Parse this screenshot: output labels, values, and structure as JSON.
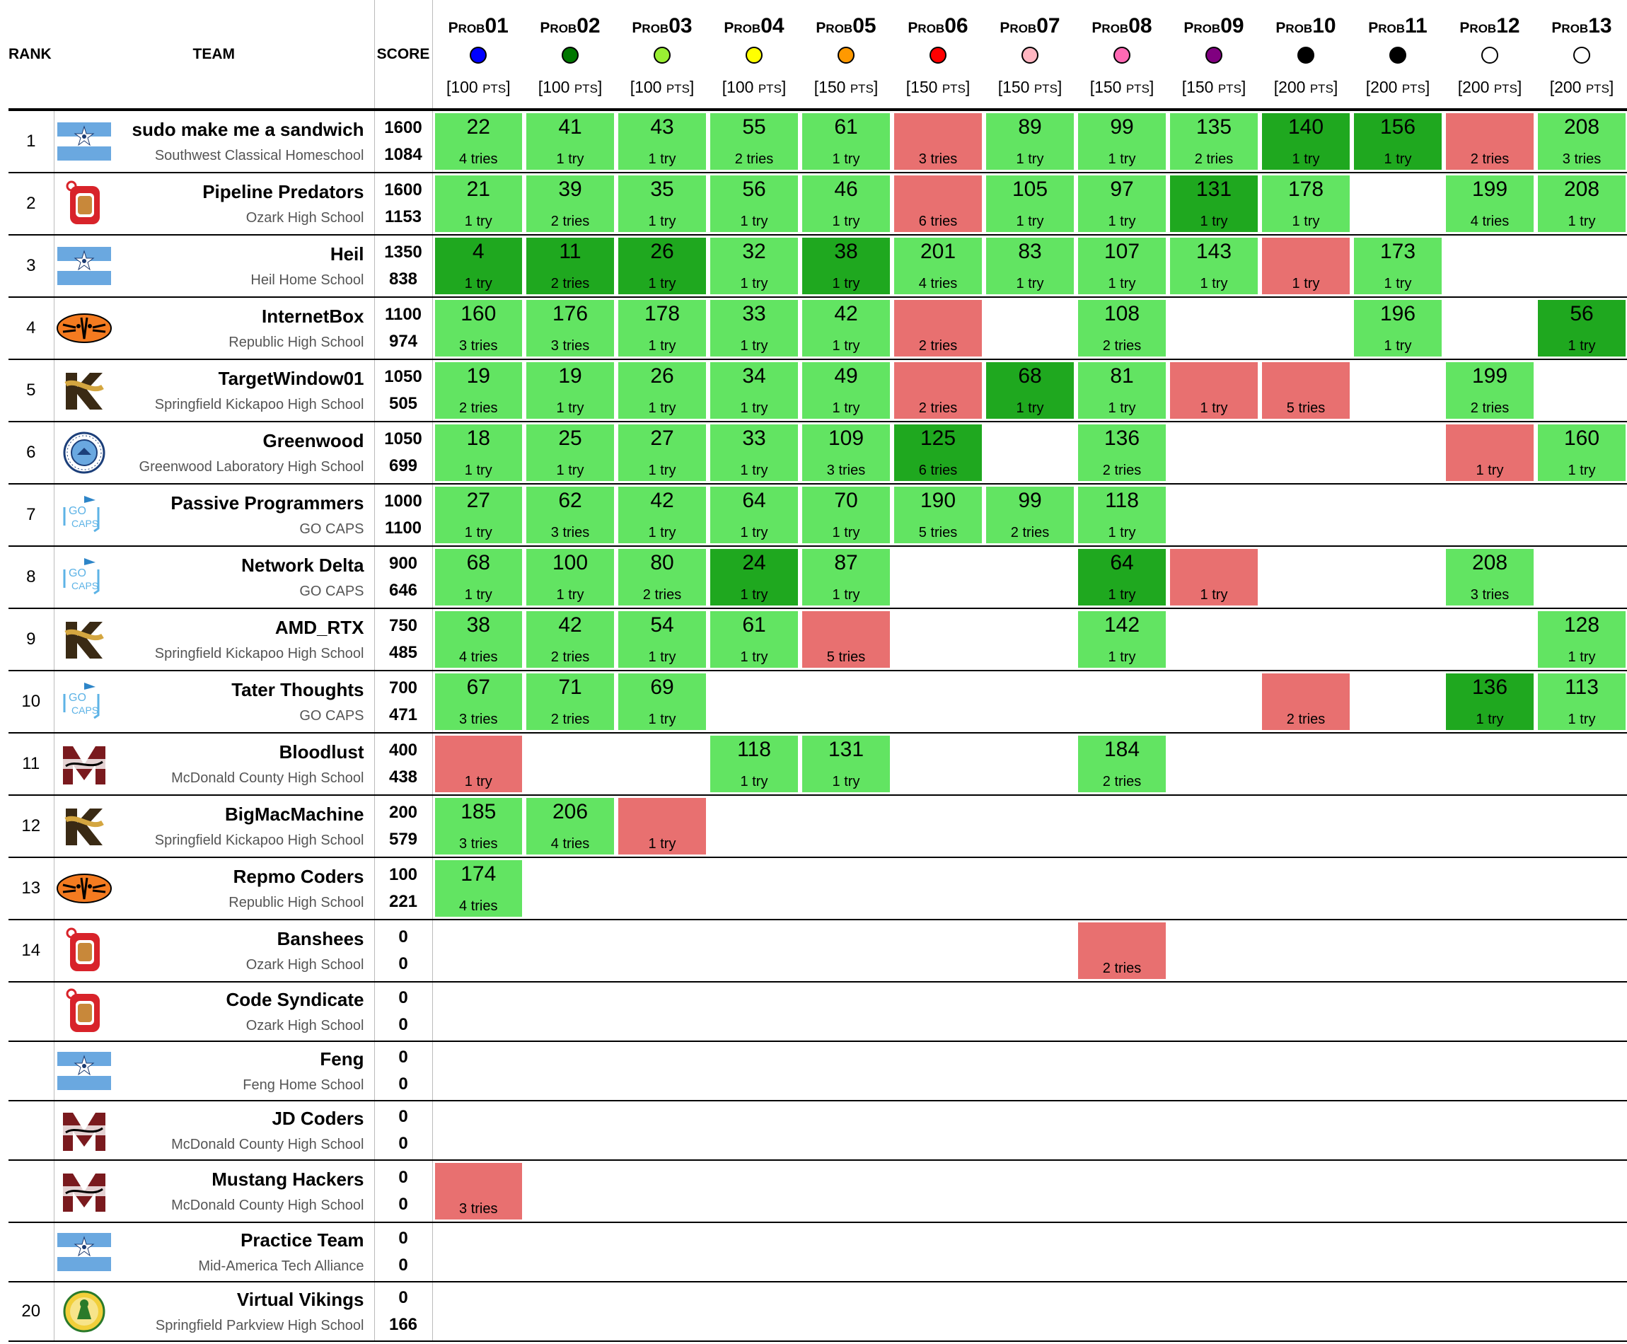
{
  "headers": {
    "rank": "RANK",
    "team": "TEAM",
    "score": "SCORE",
    "prob_prefix_big": "P",
    "prob_prefix_small": "ROB",
    "pts_suffix": "PTS"
  },
  "problems": [
    {
      "num": "01",
      "color": "#0000ff",
      "points": "100"
    },
    {
      "num": "02",
      "color": "#007700",
      "points": "100"
    },
    {
      "num": "03",
      "color": "#99ee33",
      "points": "100"
    },
    {
      "num": "04",
      "color": "#ffff00",
      "points": "100"
    },
    {
      "num": "05",
      "color": "#ff9900",
      "points": "150"
    },
    {
      "num": "06",
      "color": "#ff0000",
      "points": "150"
    },
    {
      "num": "07",
      "color": "#ffb6c1",
      "points": "150"
    },
    {
      "num": "08",
      "color": "#ff69b4",
      "points": "150"
    },
    {
      "num": "09",
      "color": "#800080",
      "points": "150"
    },
    {
      "num": "10",
      "color": "#000000",
      "points": "200"
    },
    {
      "num": "11",
      "color": "#000000",
      "points": "200"
    },
    {
      "num": "12",
      "color": "#ffffff",
      "points": "200"
    },
    {
      "num": "13",
      "color": "#ffffff",
      "points": "200"
    }
  ],
  "logo_types": [
    "flag",
    "ozark",
    "tiger",
    "kickapoo",
    "greenwood",
    "gocaps",
    "mustang",
    "viking"
  ],
  "rows": [
    {
      "rank": "1",
      "logo": "flag",
      "team": "sudo make me a sandwich",
      "school": "Southwest Classical Homeschool",
      "score": "1600",
      "penalty": "1084",
      "cells": [
        [
          "s",
          "22",
          "4 tries"
        ],
        [
          "s",
          "41",
          "1 try"
        ],
        [
          "s",
          "43",
          "1 try"
        ],
        [
          "s",
          "55",
          "2 tries"
        ],
        [
          "s",
          "61",
          "1 try"
        ],
        [
          "f",
          "",
          "3 tries"
        ],
        [
          "s",
          "89",
          "1 try"
        ],
        [
          "s",
          "99",
          "1 try"
        ],
        [
          "s",
          "135",
          "2 tries"
        ],
        [
          "F",
          "140",
          "1 try"
        ],
        [
          "F",
          "156",
          "1 try"
        ],
        [
          "f",
          "",
          "2 tries"
        ],
        [
          "s",
          "208",
          "3 tries"
        ]
      ]
    },
    {
      "rank": "2",
      "logo": "ozark",
      "team": "Pipeline Predators",
      "school": "Ozark High School",
      "score": "1600",
      "penalty": "1153",
      "cells": [
        [
          "s",
          "21",
          "1 try"
        ],
        [
          "s",
          "39",
          "2 tries"
        ],
        [
          "s",
          "35",
          "1 try"
        ],
        [
          "s",
          "56",
          "1 try"
        ],
        [
          "s",
          "46",
          "1 try"
        ],
        [
          "f",
          "",
          "6 tries"
        ],
        [
          "s",
          "105",
          "1 try"
        ],
        [
          "s",
          "97",
          "1 try"
        ],
        [
          "F",
          "131",
          "1 try"
        ],
        [
          "s",
          "178",
          "1 try"
        ],
        [
          "",
          "",
          ""
        ],
        [
          "s",
          "199",
          "4 tries"
        ],
        [
          "s",
          "208",
          "1 try"
        ]
      ]
    },
    {
      "rank": "3",
      "logo": "flag",
      "team": "Heil",
      "school": "Heil Home School",
      "score": "1350",
      "penalty": "838",
      "cells": [
        [
          "F",
          "4",
          "1 try"
        ],
        [
          "F",
          "11",
          "2 tries"
        ],
        [
          "F",
          "26",
          "1 try"
        ],
        [
          "s",
          "32",
          "1 try"
        ],
        [
          "F",
          "38",
          "1 try"
        ],
        [
          "s",
          "201",
          "4 tries"
        ],
        [
          "s",
          "83",
          "1 try"
        ],
        [
          "s",
          "107",
          "1 try"
        ],
        [
          "s",
          "143",
          "1 try"
        ],
        [
          "f",
          "",
          "1 try"
        ],
        [
          "s",
          "173",
          "1 try"
        ],
        [
          "",
          "",
          ""
        ],
        [
          "",
          "",
          ""
        ]
      ]
    },
    {
      "rank": "4",
      "logo": "tiger",
      "team": "InternetBox",
      "school": "Republic High School",
      "score": "1100",
      "penalty": "974",
      "cells": [
        [
          "s",
          "160",
          "3 tries"
        ],
        [
          "s",
          "176",
          "3 tries"
        ],
        [
          "s",
          "178",
          "1 try"
        ],
        [
          "s",
          "33",
          "1 try"
        ],
        [
          "s",
          "42",
          "1 try"
        ],
        [
          "f",
          "",
          "2 tries"
        ],
        [
          "",
          "",
          ""
        ],
        [
          "s",
          "108",
          "2 tries"
        ],
        [
          "",
          "",
          ""
        ],
        [
          "",
          "",
          ""
        ],
        [
          "s",
          "196",
          "1 try"
        ],
        [
          "",
          "",
          ""
        ],
        [
          "F",
          "56",
          "1 try"
        ]
      ]
    },
    {
      "rank": "5",
      "logo": "kickapoo",
      "team": "TargetWindow01",
      "school": "Springfield Kickapoo High School",
      "score": "1050",
      "penalty": "505",
      "cells": [
        [
          "s",
          "19",
          "2 tries"
        ],
        [
          "s",
          "19",
          "1 try"
        ],
        [
          "s",
          "26",
          "1 try"
        ],
        [
          "s",
          "34",
          "1 try"
        ],
        [
          "s",
          "49",
          "1 try"
        ],
        [
          "f",
          "",
          "2 tries"
        ],
        [
          "F",
          "68",
          "1 try"
        ],
        [
          "s",
          "81",
          "1 try"
        ],
        [
          "f",
          "",
          "1 try"
        ],
        [
          "f",
          "",
          "5 tries"
        ],
        [
          "",
          "",
          ""
        ],
        [
          "s",
          "199",
          "2 tries"
        ],
        [
          "",
          "",
          ""
        ]
      ]
    },
    {
      "rank": "6",
      "logo": "greenwood",
      "team": "Greenwood",
      "school": "Greenwood Laboratory High School",
      "score": "1050",
      "penalty": "699",
      "cells": [
        [
          "s",
          "18",
          "1 try"
        ],
        [
          "s",
          "25",
          "1 try"
        ],
        [
          "s",
          "27",
          "1 try"
        ],
        [
          "s",
          "33",
          "1 try"
        ],
        [
          "s",
          "109",
          "3 tries"
        ],
        [
          "F",
          "125",
          "6 tries"
        ],
        [
          "",
          "",
          ""
        ],
        [
          "s",
          "136",
          "2 tries"
        ],
        [
          "",
          "",
          ""
        ],
        [
          "",
          "",
          ""
        ],
        [
          "",
          "",
          ""
        ],
        [
          "f",
          "",
          "1 try"
        ],
        [
          "s",
          "160",
          "1 try"
        ]
      ]
    },
    {
      "rank": "7",
      "logo": "gocaps",
      "team": "Passive Programmers",
      "school": "GO CAPS",
      "score": "1000",
      "penalty": "1100",
      "cells": [
        [
          "s",
          "27",
          "1 try"
        ],
        [
          "s",
          "62",
          "3 tries"
        ],
        [
          "s",
          "42",
          "1 try"
        ],
        [
          "s",
          "64",
          "1 try"
        ],
        [
          "s",
          "70",
          "1 try"
        ],
        [
          "s",
          "190",
          "5 tries"
        ],
        [
          "s",
          "99",
          "2 tries"
        ],
        [
          "s",
          "118",
          "1 try"
        ],
        [
          "",
          "",
          ""
        ],
        [
          "",
          "",
          ""
        ],
        [
          "",
          "",
          ""
        ],
        [
          "",
          "",
          ""
        ],
        [
          "",
          "",
          ""
        ]
      ]
    },
    {
      "rank": "8",
      "logo": "gocaps",
      "team": "Network Delta",
      "school": "GO CAPS",
      "score": "900",
      "penalty": "646",
      "cells": [
        [
          "s",
          "68",
          "1 try"
        ],
        [
          "s",
          "100",
          "1 try"
        ],
        [
          "s",
          "80",
          "2 tries"
        ],
        [
          "F",
          "24",
          "1 try"
        ],
        [
          "s",
          "87",
          "1 try"
        ],
        [
          "",
          "",
          ""
        ],
        [
          "",
          "",
          ""
        ],
        [
          "F",
          "64",
          "1 try"
        ],
        [
          "f",
          "",
          "1 try"
        ],
        [
          "",
          "",
          ""
        ],
        [
          "",
          "",
          ""
        ],
        [
          "s",
          "208",
          "3 tries"
        ],
        [
          "",
          "",
          ""
        ]
      ]
    },
    {
      "rank": "9",
      "logo": "kickapoo",
      "team": "AMD_RTX",
      "school": "Springfield Kickapoo High School",
      "score": "750",
      "penalty": "485",
      "cells": [
        [
          "s",
          "38",
          "4 tries"
        ],
        [
          "s",
          "42",
          "2 tries"
        ],
        [
          "s",
          "54",
          "1 try"
        ],
        [
          "s",
          "61",
          "1 try"
        ],
        [
          "f",
          "",
          "5 tries"
        ],
        [
          "",
          "",
          ""
        ],
        [
          "",
          "",
          ""
        ],
        [
          "s",
          "142",
          "1 try"
        ],
        [
          "",
          "",
          ""
        ],
        [
          "",
          "",
          ""
        ],
        [
          "",
          "",
          ""
        ],
        [
          "",
          "",
          ""
        ],
        [
          "s",
          "128",
          "1 try"
        ]
      ]
    },
    {
      "rank": "10",
      "logo": "gocaps",
      "team": "Tater Thoughts",
      "school": "GO CAPS",
      "score": "700",
      "penalty": "471",
      "cells": [
        [
          "s",
          "67",
          "3 tries"
        ],
        [
          "s",
          "71",
          "2 tries"
        ],
        [
          "s",
          "69",
          "1 try"
        ],
        [
          "",
          "",
          ""
        ],
        [
          "",
          "",
          ""
        ],
        [
          "",
          "",
          ""
        ],
        [
          "",
          "",
          ""
        ],
        [
          "",
          "",
          ""
        ],
        [
          "",
          "",
          ""
        ],
        [
          "f",
          "",
          "2 tries"
        ],
        [
          "",
          "",
          ""
        ],
        [
          "F",
          "136",
          "1 try"
        ],
        [
          "s",
          "113",
          "1 try"
        ]
      ]
    },
    {
      "rank": "11",
      "logo": "mustang",
      "team": "Bloodlust",
      "school": "McDonald County High School",
      "score": "400",
      "penalty": "438",
      "cells": [
        [
          "f",
          "",
          "1 try"
        ],
        [
          "",
          "",
          ""
        ],
        [
          "",
          "",
          ""
        ],
        [
          "s",
          "118",
          "1 try"
        ],
        [
          "s",
          "131",
          "1 try"
        ],
        [
          "",
          "",
          ""
        ],
        [
          "",
          "",
          ""
        ],
        [
          "s",
          "184",
          "2 tries"
        ],
        [
          "",
          "",
          ""
        ],
        [
          "",
          "",
          ""
        ],
        [
          "",
          "",
          ""
        ],
        [
          "",
          "",
          ""
        ],
        [
          "",
          "",
          ""
        ]
      ]
    },
    {
      "rank": "12",
      "logo": "kickapoo",
      "team": "BigMacMachine",
      "school": "Springfield Kickapoo High School",
      "score": "200",
      "penalty": "579",
      "cells": [
        [
          "s",
          "185",
          "3 tries"
        ],
        [
          "s",
          "206",
          "4 tries"
        ],
        [
          "f",
          "",
          "1 try"
        ],
        [
          "",
          "",
          ""
        ],
        [
          "",
          "",
          ""
        ],
        [
          "",
          "",
          ""
        ],
        [
          "",
          "",
          ""
        ],
        [
          "",
          "",
          ""
        ],
        [
          "",
          "",
          ""
        ],
        [
          "",
          "",
          ""
        ],
        [
          "",
          "",
          ""
        ],
        [
          "",
          "",
          ""
        ],
        [
          "",
          "",
          ""
        ]
      ]
    },
    {
      "rank": "13",
      "logo": "tiger",
      "team": "Repmo Coders",
      "school": "Republic High School",
      "score": "100",
      "penalty": "221",
      "cells": [
        [
          "s",
          "174",
          "4 tries"
        ],
        [
          "",
          "",
          ""
        ],
        [
          "",
          "",
          ""
        ],
        [
          "",
          "",
          ""
        ],
        [
          "",
          "",
          ""
        ],
        [
          "",
          "",
          ""
        ],
        [
          "",
          "",
          ""
        ],
        [
          "",
          "",
          ""
        ],
        [
          "",
          "",
          ""
        ],
        [
          "",
          "",
          ""
        ],
        [
          "",
          "",
          ""
        ],
        [
          "",
          "",
          ""
        ],
        [
          "",
          "",
          ""
        ]
      ]
    },
    {
      "rank": "14",
      "logo": "ozark",
      "team": "Banshees",
      "school": "Ozark High School",
      "score": "0",
      "penalty": "0",
      "cells": [
        [
          "",
          "",
          ""
        ],
        [
          "",
          "",
          ""
        ],
        [
          "",
          "",
          ""
        ],
        [
          "",
          "",
          ""
        ],
        [
          "",
          "",
          ""
        ],
        [
          "",
          "",
          ""
        ],
        [
          "",
          "",
          ""
        ],
        [
          "f",
          "",
          "2 tries"
        ],
        [
          "",
          "",
          ""
        ],
        [
          "",
          "",
          ""
        ],
        [
          "",
          "",
          ""
        ],
        [
          "",
          "",
          ""
        ],
        [
          "",
          "",
          ""
        ]
      ]
    },
    {
      "rank": "",
      "logo": "ozark",
      "team": "Code Syndicate",
      "school": "Ozark High School",
      "score": "0",
      "penalty": "0",
      "short": true,
      "cells": []
    },
    {
      "rank": "",
      "logo": "flag",
      "team": "Feng",
      "school": "Feng Home School",
      "score": "0",
      "penalty": "0",
      "short": true,
      "cells": []
    },
    {
      "rank": "",
      "logo": "mustang",
      "team": "JD Coders",
      "school": "McDonald County High School",
      "score": "0",
      "penalty": "0",
      "short": true,
      "cells": []
    },
    {
      "rank": "",
      "logo": "mustang",
      "team": "Mustang Hackers",
      "school": "McDonald County High School",
      "score": "0",
      "penalty": "0",
      "cells": [
        [
          "f",
          "",
          "3 tries"
        ]
      ]
    },
    {
      "rank": "",
      "logo": "flag",
      "team": "Practice Team",
      "school": "Mid-America Tech Alliance",
      "score": "0",
      "penalty": "0",
      "short": true,
      "cells": []
    },
    {
      "rank": "20",
      "logo": "viking",
      "team": "Virtual Vikings",
      "school": "Springfield Parkview High School",
      "score": "0",
      "penalty": "166",
      "short": true,
      "cells": []
    }
  ]
}
